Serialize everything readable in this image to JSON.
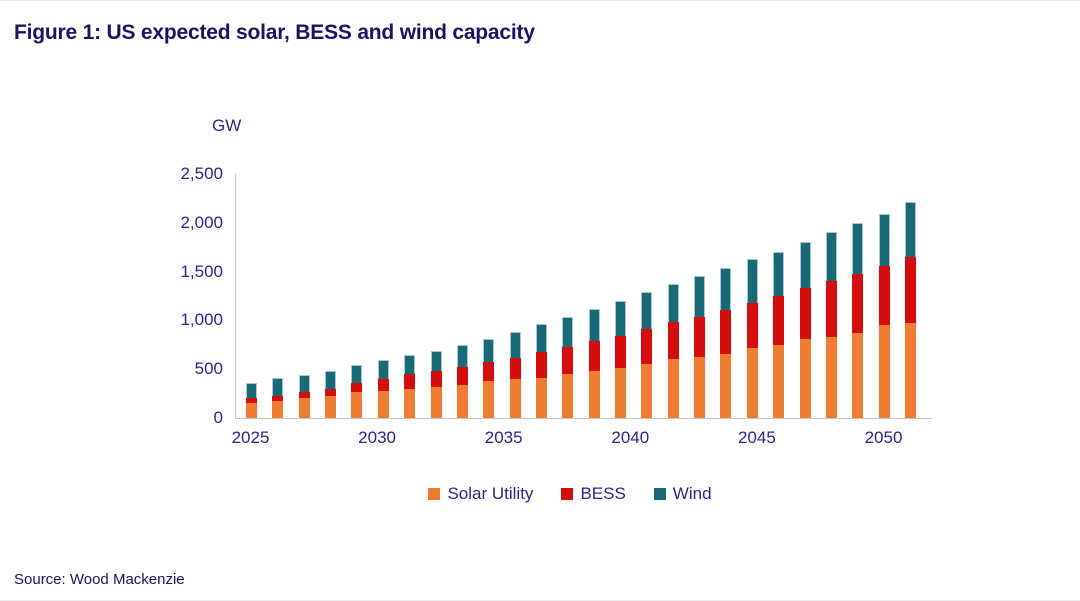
{
  "figure": {
    "title": "Figure 1: US expected solar, BESS and wind capacity",
    "source": "Source: Wood Mackenzie"
  },
  "colors": {
    "solar_utility": "#ED7D31",
    "bess": "#D40E0E",
    "wind": "#186B76",
    "axis_line": "#C6C6C6",
    "navy_text": "#2B2787",
    "title_text": "#1B1464",
    "bar_cap_outline": "#A9C7CE"
  },
  "chart_data": {
    "type": "bar",
    "stacked": true,
    "title": "US expected solar, BESS and wind capacity",
    "xlabel": "",
    "ylabel": "GW",
    "ylim": [
      0,
      2500
    ],
    "grid": false,
    "legend_position": "bottom",
    "x": [
      2025,
      2026,
      2027,
      2028,
      2029,
      2030,
      2031,
      2032,
      2033,
      2034,
      2035,
      2036,
      2037,
      2038,
      2039,
      2040,
      2041,
      2042,
      2043,
      2044,
      2045,
      2046,
      2047,
      2048,
      2049,
      2050
    ],
    "x_tick_labels": [
      "2025",
      "2030",
      "2035",
      "2040",
      "2045",
      "2050"
    ],
    "y_tick_labels": [
      "0",
      "500",
      "1,000",
      "1,500",
      "2,000",
      "2,500"
    ],
    "y_tick_values": [
      0,
      500,
      1000,
      1500,
      2000,
      2500
    ],
    "series": [
      {
        "name": "Solar Utility",
        "color": "#ED7D31",
        "values": [
          150,
          170,
          205,
          230,
          265,
          275,
          300,
          315,
          335,
          375,
          400,
          410,
          455,
          485,
          515,
          550,
          600,
          625,
          655,
          715,
          745,
          815,
          835,
          875,
          950,
          975
        ]
      },
      {
        "name": "BESS",
        "color": "#D40E0E",
        "values": [
          55,
          55,
          60,
          65,
          90,
          125,
          150,
          165,
          185,
          195,
          215,
          265,
          270,
          300,
          330,
          365,
          380,
          410,
          455,
          460,
          505,
          515,
          570,
          600,
          610,
          675
        ]
      },
      {
        "name": "Wind",
        "color": "#186B76",
        "values": [
          155,
          180,
          180,
          190,
          190,
          195,
          200,
          210,
          230,
          245,
          270,
          290,
          310,
          330,
          355,
          380,
          390,
          420,
          430,
          450,
          455,
          470,
          505,
          520,
          535,
          560
        ]
      }
    ]
  }
}
